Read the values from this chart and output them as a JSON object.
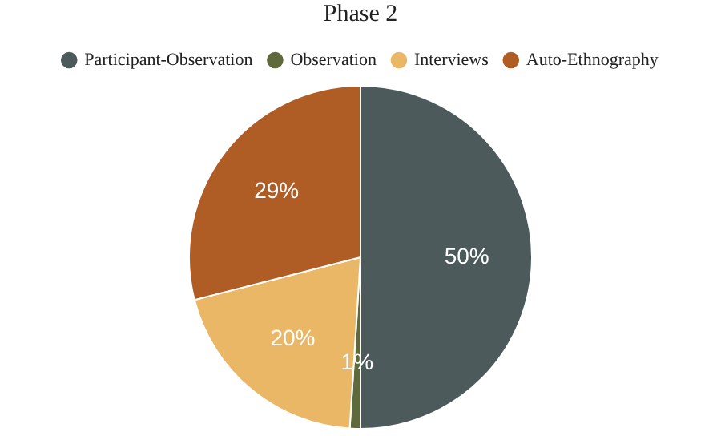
{
  "chart_data": {
    "type": "pie",
    "title": "Phase 2",
    "categories": [
      "Participant-Observation",
      "Observation",
      "Interviews",
      "Auto-Ethnography"
    ],
    "values": [
      50,
      1,
      20,
      29
    ],
    "value_labels": [
      "50%",
      "1%",
      "20%",
      "29%"
    ],
    "colors": [
      "#4d5a5b",
      "#5f6a3c",
      "#e9b766",
      "#b05c25"
    ],
    "legend": "top"
  }
}
